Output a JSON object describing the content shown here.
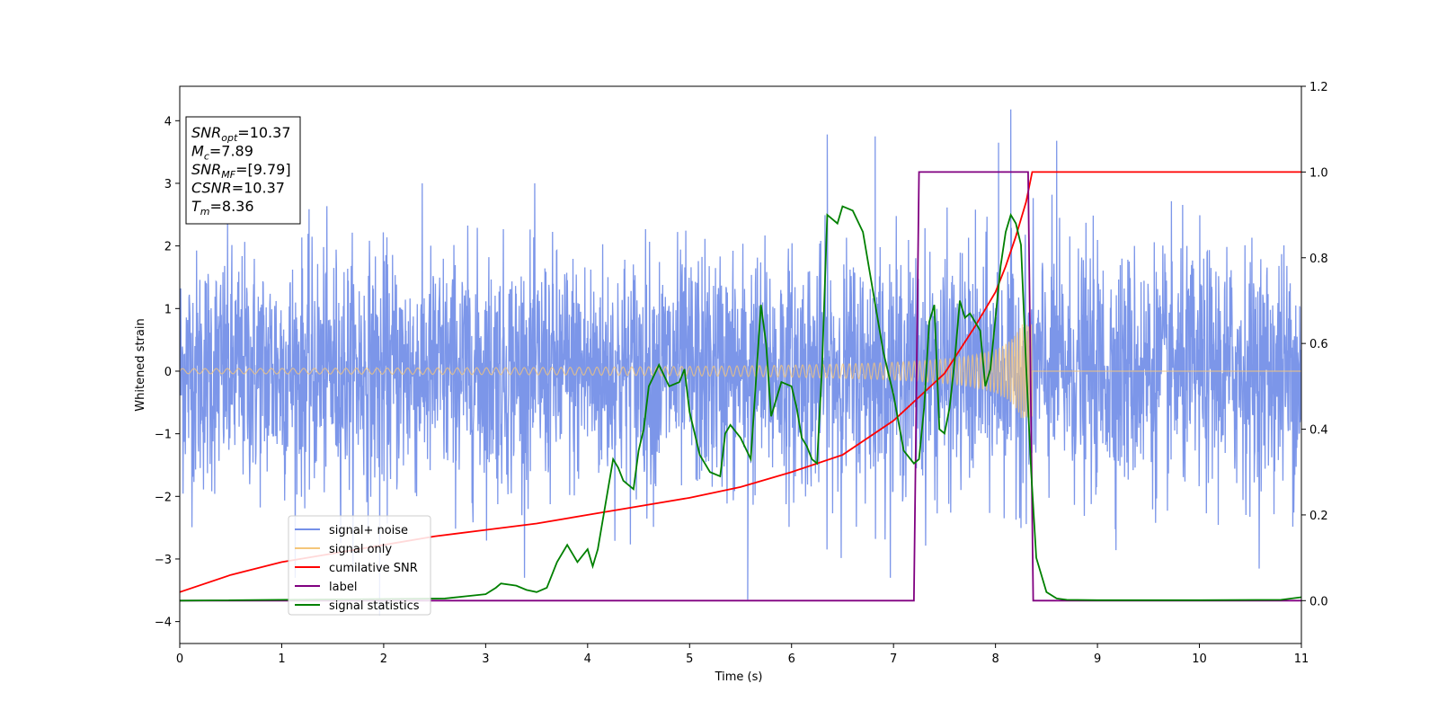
{
  "chart_data": {
    "type": "line",
    "xlabel": "Time (s)",
    "ylabel": "Whitened strain",
    "xlim": [
      0,
      11
    ],
    "ylim": [
      -4.35,
      4.55
    ],
    "y2lim": [
      -0.1,
      1.2
    ],
    "x_ticks": [
      "0",
      "1",
      "2",
      "3",
      "4",
      "5",
      "6",
      "7",
      "8",
      "9",
      "10",
      "11"
    ],
    "y_ticks": [
      "4",
      "3",
      "2",
      "1",
      "0",
      "−1",
      "−2",
      "−3",
      "−4"
    ],
    "y2_ticks": [
      "1.2",
      "1.0",
      "0.8",
      "0.6",
      "0.4",
      "0.2",
      "0.0"
    ],
    "grid": false,
    "legend_position": "lower-left",
    "annotation": {
      "lines": [
        {
          "base": "SNR",
          "sub": "opt",
          "value": "=10.37"
        },
        {
          "base": "M",
          "sub": "c",
          "value": "=7.89"
        },
        {
          "base": "SNR",
          "sub": "MF",
          "value": "=[9.79]"
        },
        {
          "base": "CSNR",
          "sub": "",
          "value": "=10.37"
        },
        {
          "base": "T",
          "sub": "m",
          "value": "=8.36"
        }
      ]
    },
    "series": [
      {
        "name": "signal+ noise",
        "color": "#7590e8",
        "axis": "left",
        "kind": "noise",
        "sigma": 0.95,
        "range": [
          -3.9,
          4.2
        ],
        "notable_peaks": [
          {
            "x": 6.35,
            "y": 3.78
          },
          {
            "x": 6.82,
            "y": 3.75
          },
          {
            "x": 8.03,
            "y": 3.65
          },
          {
            "x": 8.15,
            "y": 4.18
          },
          {
            "x": 8.6,
            "y": 3.68
          },
          {
            "x": 5.57,
            "y": -3.65
          },
          {
            "x": 1.96,
            "y": -3.9
          }
        ]
      },
      {
        "name": "signal only",
        "color": "#f5c67a",
        "axis": "left",
        "kind": "chirp",
        "merger_time": 8.36,
        "amplitude_start": 0.04,
        "amplitude_peak": 0.75
      },
      {
        "name": "cumilative SNR",
        "color": "#ff0000",
        "axis": "right",
        "x": [
          0,
          0.5,
          1,
          1.5,
          2,
          2.5,
          3,
          3.5,
          4,
          4.5,
          5,
          5.5,
          6,
          6.5,
          7,
          7.5,
          7.8,
          8.0,
          8.1,
          8.2,
          8.3,
          8.36,
          11
        ],
        "values": [
          0.02,
          0.06,
          0.09,
          0.11,
          0.13,
          0.15,
          0.165,
          0.18,
          0.2,
          0.22,
          0.24,
          0.265,
          0.3,
          0.34,
          0.42,
          0.53,
          0.64,
          0.72,
          0.78,
          0.85,
          0.93,
          1.0,
          1.0
        ]
      },
      {
        "name": "label",
        "color": "#800080",
        "axis": "right",
        "x": [
          0,
          7.2,
          7.25,
          8.32,
          8.37,
          11
        ],
        "values": [
          0,
          0,
          1,
          1,
          0,
          0
        ]
      },
      {
        "name": "signal statistics",
        "color": "#008000",
        "axis": "right",
        "x": [
          0,
          2.6,
          2.8,
          3.0,
          3.1,
          3.15,
          3.3,
          3.4,
          3.5,
          3.6,
          3.7,
          3.8,
          3.85,
          3.9,
          4.0,
          4.05,
          4.1,
          4.2,
          4.25,
          4.3,
          4.35,
          4.45,
          4.5,
          4.55,
          4.6,
          4.7,
          4.8,
          4.9,
          4.95,
          5.0,
          5.1,
          5.2,
          5.3,
          5.35,
          5.4,
          5.5,
          5.6,
          5.7,
          5.75,
          5.8,
          5.9,
          6.0,
          6.05,
          6.1,
          6.15,
          6.2,
          6.25,
          6.3,
          6.35,
          6.45,
          6.5,
          6.6,
          6.7,
          6.8,
          6.9,
          7.0,
          7.1,
          7.2,
          7.25,
          7.3,
          7.35,
          7.4,
          7.45,
          7.5,
          7.55,
          7.6,
          7.65,
          7.7,
          7.75,
          7.8,
          7.85,
          7.9,
          7.95,
          8.0,
          8.05,
          8.1,
          8.15,
          8.2,
          8.25,
          8.3,
          8.35,
          8.4,
          8.5,
          8.6,
          8.7,
          9.0,
          10.0,
          10.8,
          11.0
        ],
        "values": [
          0.0,
          0.005,
          0.01,
          0.015,
          0.03,
          0.04,
          0.035,
          0.025,
          0.02,
          0.03,
          0.09,
          0.13,
          0.11,
          0.09,
          0.12,
          0.08,
          0.12,
          0.26,
          0.33,
          0.31,
          0.28,
          0.26,
          0.35,
          0.4,
          0.5,
          0.55,
          0.5,
          0.51,
          0.54,
          0.44,
          0.34,
          0.3,
          0.29,
          0.39,
          0.41,
          0.38,
          0.33,
          0.69,
          0.6,
          0.43,
          0.51,
          0.5,
          0.45,
          0.38,
          0.36,
          0.33,
          0.32,
          0.55,
          0.9,
          0.88,
          0.92,
          0.91,
          0.86,
          0.72,
          0.58,
          0.48,
          0.35,
          0.32,
          0.33,
          0.45,
          0.65,
          0.69,
          0.4,
          0.39,
          0.45,
          0.56,
          0.7,
          0.66,
          0.67,
          0.65,
          0.63,
          0.5,
          0.54,
          0.66,
          0.78,
          0.86,
          0.9,
          0.88,
          0.83,
          0.55,
          0.3,
          0.1,
          0.02,
          0.005,
          0.002,
          0.001,
          0.001,
          0.002,
          0.008
        ]
      }
    ]
  }
}
